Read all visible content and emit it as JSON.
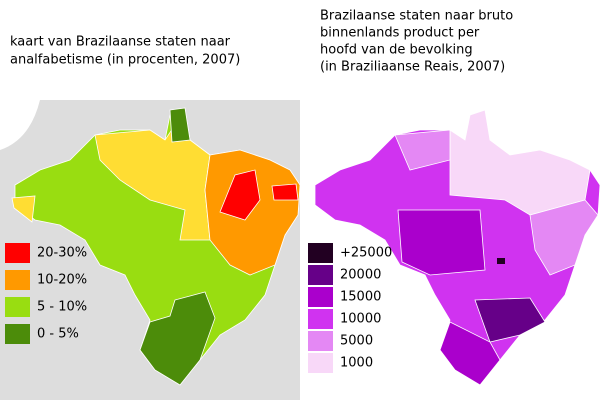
{
  "left_map": {
    "title_lines": [
      "kaart van Brazilaanse staten naar",
      "analfabetisme (in procenten, 2007)"
    ],
    "legend": [
      {
        "label": "20-30%",
        "color": "#ff0000"
      },
      {
        "label": "10-20%",
        "color": "#ff9900"
      },
      {
        "label": "5 - 10%",
        "color": "#99dd11"
      },
      {
        "label": "0 - 5%",
        "color": "#4c8c0a"
      }
    ]
  },
  "right_map": {
    "title_lines": [
      "Brazilaanse staten naar bruto",
      "binnenlands product per",
      "hoofd van de bevolking",
      "(in Braziliaanse Reais, 2007)"
    ],
    "legend": [
      {
        "label": "+25000",
        "color": "#220022"
      },
      {
        "label": "20000",
        "color": "#660088"
      },
      {
        "label": "15000",
        "color": "#aa00cc"
      },
      {
        "label": "10000",
        "color": "#d033f0"
      },
      {
        "label": "5000",
        "color": "#e488f4"
      },
      {
        "label": "1000",
        "color": "#f8d8f8"
      }
    ]
  }
}
